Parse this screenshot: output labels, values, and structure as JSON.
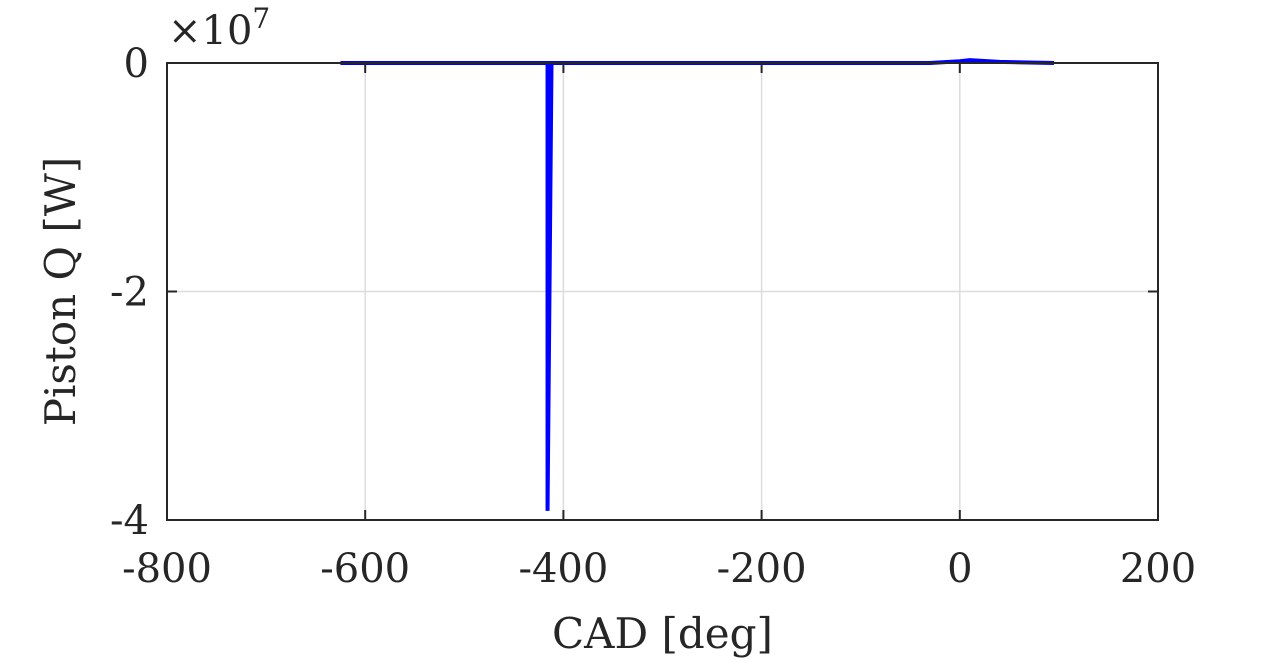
{
  "chart_data": {
    "type": "line",
    "title": "",
    "xlabel": "CAD [deg]",
    "ylabel": "Piston Q [W]",
    "y_exponent": {
      "prefix": "×10",
      "power": "7"
    },
    "xlim": [
      -800,
      200
    ],
    "ylim": [
      -40000000,
      0
    ],
    "x_ticks": [
      -800,
      -600,
      -400,
      -200,
      0,
      200
    ],
    "x_tick_labels": [
      "-800",
      "-600",
      "-400",
      "-200",
      "0",
      "200"
    ],
    "y_ticks": [
      -40000000,
      -20000000,
      0
    ],
    "y_tick_labels": [
      "-4",
      "-2",
      "0"
    ],
    "grid": true,
    "series": [
      {
        "color": "#0000ff",
        "x": [
          -625,
          -420,
          -416,
          -416,
          -412,
          -400,
          -200,
          -30,
          0,
          10,
          40,
          95
        ],
        "y": [
          0,
          0,
          0,
          -39200000,
          0,
          0,
          0,
          0,
          150000,
          250000,
          100000,
          0
        ]
      }
    ]
  }
}
